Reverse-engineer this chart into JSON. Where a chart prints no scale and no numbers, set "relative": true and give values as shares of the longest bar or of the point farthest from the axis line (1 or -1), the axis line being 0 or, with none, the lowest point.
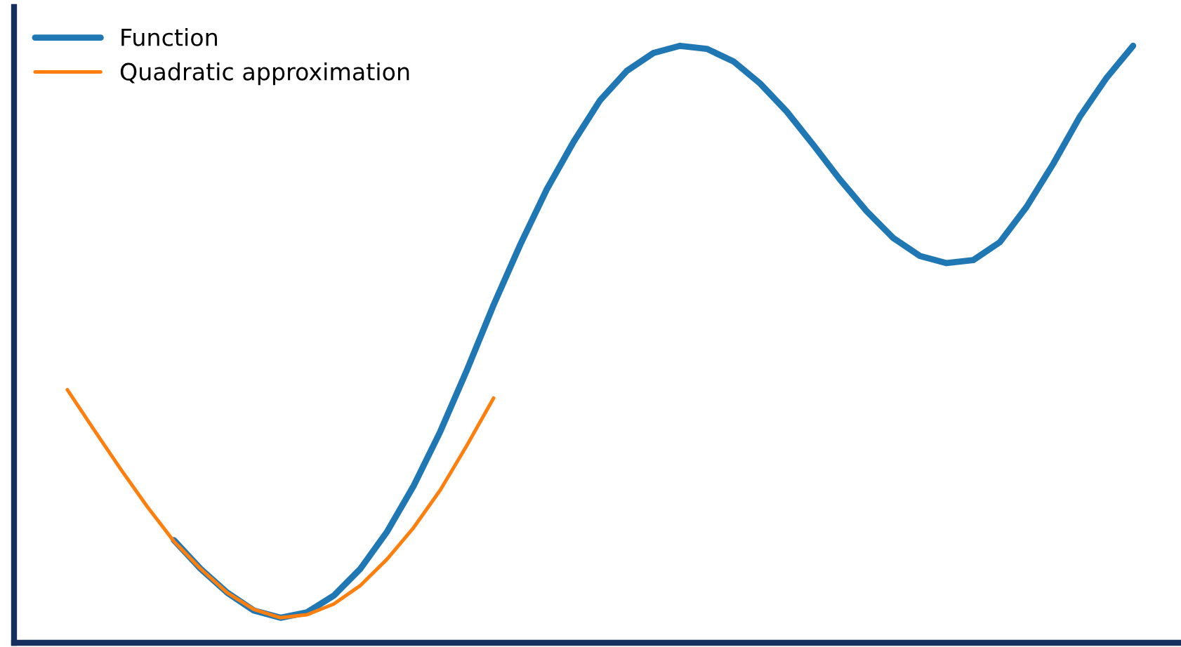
{
  "chart_data": {
    "type": "line",
    "relative": true,
    "legend": "top left",
    "grid": false,
    "categories": [
      null,
      null,
      null,
      null,
      null,
      null,
      null,
      null,
      null,
      null,
      null,
      null,
      null,
      null,
      null,
      null,
      null,
      null,
      null,
      null,
      null,
      null,
      null,
      null,
      null,
      null,
      null,
      null,
      null,
      null,
      null,
      null,
      null,
      null,
      null,
      null,
      null,
      null,
      null,
      null,
      null
    ],
    "series": [
      {
        "name": "Function",
        "color": "#1f77b4",
        "values": [
          null,
          null,
          null,
          null,
          0.172,
          0.124,
          0.084,
          0.054,
          0.042,
          0.051,
          0.079,
          0.124,
          0.186,
          0.263,
          0.354,
          0.457,
          0.566,
          0.667,
          0.76,
          0.839,
          0.909,
          0.958,
          0.988,
          1.0,
          0.995,
          0.974,
          0.937,
          0.89,
          0.834,
          0.776,
          0.723,
          0.678,
          0.648,
          0.636,
          0.641,
          0.671,
          0.73,
          0.802,
          0.881,
          0.946,
          1.0
        ]
      },
      {
        "name": "Quadratic approximation",
        "color": "#ff7f0e",
        "values": [
          0.424,
          0.357,
          0.291,
          0.228,
          0.17,
          0.124,
          0.084,
          0.056,
          0.042,
          0.047,
          0.065,
          0.096,
          0.14,
          0.193,
          0.256,
          0.331,
          0.41,
          null,
          null,
          null,
          null,
          null,
          null,
          null,
          null,
          null,
          null,
          null,
          null,
          null,
          null,
          null,
          null,
          null,
          null,
          null,
          null,
          null,
          null,
          null,
          null
        ]
      }
    ]
  }
}
